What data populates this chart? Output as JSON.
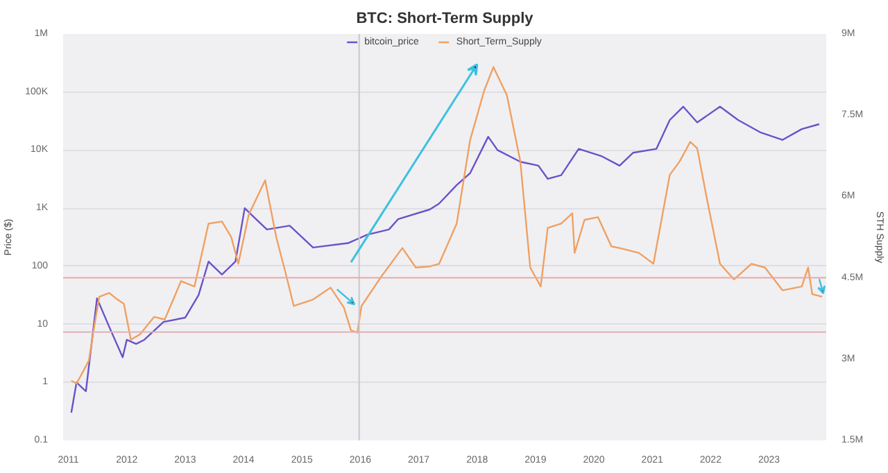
{
  "chart_data": {
    "type": "line",
    "title": "BTC: Short-Term Supply",
    "ylabel": "Price ($)",
    "y2label": "STH Supply",
    "legend": "top",
    "grid": "y",
    "log": "y",
    "xlim": [
      2010.91,
      2023.98
    ],
    "xticks": [
      2011,
      2012,
      2013,
      2014,
      2015,
      2016,
      2017,
      2018,
      2019,
      2020,
      2021,
      2022,
      2023
    ],
    "ylim": [
      0.1,
      1000000
    ],
    "yticks": [
      0.1,
      1,
      10,
      100,
      {
        "value": 1000,
        "label": "1K"
      },
      {
        "value": 10000,
        "label": "10K"
      },
      {
        "value": 100000,
        "label": "100K"
      },
      {
        "value": 1000000,
        "label": "1M"
      }
    ],
    "y2lim": [
      1.5,
      9
    ],
    "y2ticks": [
      {
        "value": 1.5,
        "label": "1.5M"
      },
      {
        "value": 3,
        "label": "3M"
      },
      {
        "value": 4.5,
        "label": "4.5M"
      },
      {
        "value": 6,
        "label": "6M"
      },
      {
        "value": 7.5,
        "label": "7.5M"
      },
      {
        "value": 9,
        "label": "9M"
      }
    ],
    "ref_lines": [
      {
        "axis": "x",
        "value": 2015.98,
        "color": "#c8c8cc"
      },
      {
        "axis": "y2",
        "value": 4.5,
        "color": "#e8a8a8"
      },
      {
        "axis": "y2",
        "value": 3.5,
        "color": "#e0b0b8"
      }
    ],
    "series": [
      {
        "name": "bitcoin_price",
        "color": "#6a52c8",
        "x": [
          2011.05,
          2011.14,
          2011.3,
          2011.47,
          2011.49,
          2011.7,
          2011.93,
          2012.0,
          2012.16,
          2012.3,
          2012.63,
          2013.0,
          2013.23,
          2013.4,
          2013.63,
          2013.86,
          2013.93,
          2014.02,
          2014.16,
          2014.4,
          2014.79,
          2015.19,
          2015.79,
          2016.12,
          2016.49,
          2016.65,
          2017.19,
          2017.35,
          2017.65,
          2017.88,
          2018.19,
          2018.35,
          2018.74,
          2019.05,
          2019.21,
          2019.44,
          2019.74,
          2020.14,
          2020.44,
          2020.67,
          2021.07,
          2021.3,
          2021.53,
          2021.77,
          2022.16,
          2022.47,
          2022.86,
          2023.23,
          2023.56,
          2023.86
        ],
        "values": [
          0.3,
          1.0,
          0.7,
          19,
          28,
          9,
          2.7,
          5.4,
          4.6,
          5.4,
          11,
          13,
          32,
          120,
          72,
          120,
          300,
          1000,
          730,
          430,
          500,
          210,
          250,
          350,
          430,
          650,
          950,
          1200,
          2500,
          4000,
          17000,
          10000,
          6300,
          5400,
          3200,
          3700,
          10500,
          7800,
          5400,
          9000,
          10500,
          33000,
          56000,
          30000,
          56000,
          33000,
          20000,
          15000,
          23000,
          28000
        ]
      },
      {
        "name": "Short_Term_Supply",
        "color": "#f0a060",
        "axis": "y2",
        "x": [
          2011.05,
          2011.14,
          2011.35,
          2011.47,
          2011.53,
          2011.7,
          2011.84,
          2011.95,
          2012.07,
          2012.23,
          2012.47,
          2012.65,
          2012.93,
          2013.16,
          2013.4,
          2013.63,
          2013.79,
          2013.91,
          2014.09,
          2014.37,
          2014.56,
          2014.72,
          2014.86,
          2015.19,
          2015.49,
          2015.72,
          2015.84,
          2015.95,
          2016.02,
          2016.35,
          2016.72,
          2016.95,
          2017.19,
          2017.35,
          2017.65,
          2017.88,
          2018.12,
          2018.28,
          2018.51,
          2018.74,
          2018.91,
          2019.09,
          2019.21,
          2019.44,
          2019.63,
          2019.67,
          2019.84,
          2020.07,
          2020.3,
          2020.44,
          2020.77,
          2021.02,
          2021.3,
          2021.47,
          2021.65,
          2021.77,
          2021.93,
          2022.16,
          2022.4,
          2022.7,
          2022.93,
          2023.23,
          2023.56,
          2023.67,
          2023.74,
          2023.91
        ],
        "values": [
          2.6,
          2.55,
          2.97,
          3.78,
          4.15,
          4.22,
          4.1,
          4.02,
          3.36,
          3.46,
          3.78,
          3.73,
          4.44,
          4.34,
          5.5,
          5.54,
          5.25,
          4.76,
          5.67,
          6.3,
          5.25,
          4.59,
          3.98,
          4.1,
          4.32,
          3.95,
          3.53,
          3.49,
          3.98,
          4.51,
          5.05,
          4.69,
          4.71,
          4.76,
          5.5,
          7.04,
          7.95,
          8.39,
          7.87,
          6.65,
          4.69,
          4.34,
          5.42,
          5.5,
          5.69,
          4.96,
          5.57,
          5.62,
          5.08,
          5.05,
          4.96,
          4.76,
          6.4,
          6.65,
          7.01,
          6.89,
          5.99,
          4.76,
          4.47,
          4.76,
          4.69,
          4.27,
          4.34,
          4.69,
          4.2,
          4.15
        ]
      }
    ]
  }
}
